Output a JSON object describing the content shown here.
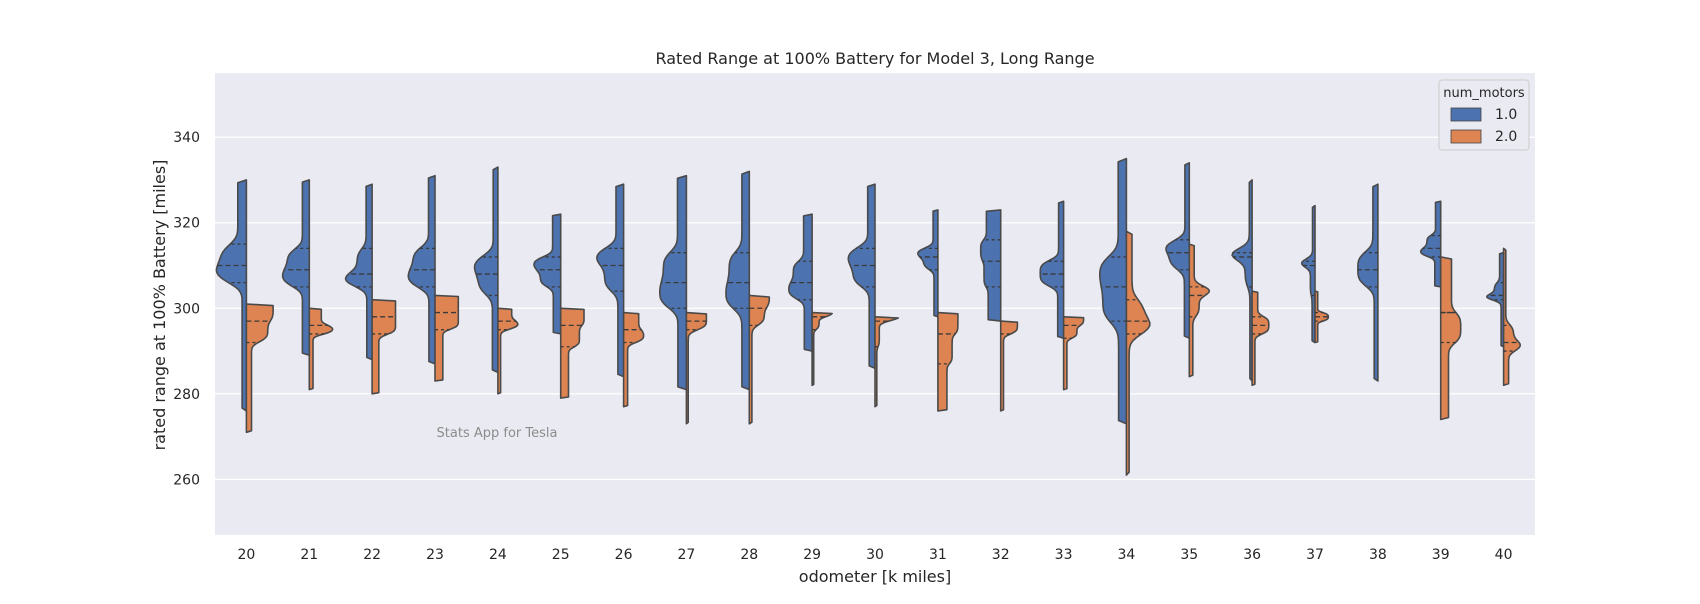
{
  "chart_data": {
    "type": "violin",
    "split": true,
    "inner": "quartile",
    "title": "Rated Range at 100% Battery for Model 3, Long Range",
    "xlabel": "odometer [k miles]",
    "ylabel": "rated range at 100% Battery [miles]",
    "ylim": [
      247,
      355
    ],
    "yticks": [
      260,
      280,
      300,
      320,
      340
    ],
    "grid": true,
    "watermark": "Stats App for Tesla",
    "legend": {
      "title": "num_motors",
      "placement": "top-right"
    },
    "categories": [
      "20",
      "21",
      "22",
      "23",
      "24",
      "25",
      "26",
      "27",
      "28",
      "29",
      "30",
      "31",
      "32",
      "33",
      "34",
      "35",
      "36",
      "37",
      "38",
      "39",
      "40"
    ],
    "series": [
      {
        "name": "1.0",
        "color": "#4c72b0",
        "min": [
          276,
          289,
          288,
          287,
          285,
          294,
          284,
          281,
          281,
          290,
          286,
          298,
          297,
          293,
          273,
          293,
          283,
          292,
          283,
          305,
          291
        ],
        "q1": [
          306,
          305,
          305,
          305,
          303,
          305,
          304,
          300,
          300,
          302,
          305,
          309,
          305,
          305,
          297,
          309,
          305,
          303,
          305,
          312,
          302
        ],
        "median": [
          310,
          309,
          308,
          309,
          308,
          309,
          310,
          306,
          306,
          306,
          310,
          312,
          311,
          308,
          305,
          313,
          312,
          310,
          309,
          314,
          303
        ],
        "q3": [
          315,
          314,
          314,
          314,
          312,
          312,
          314,
          313,
          313,
          311,
          314,
          314,
          316,
          311,
          312,
          316,
          313,
          311,
          313,
          317,
          306
        ],
        "max": [
          330,
          330,
          329,
          331,
          333,
          322,
          329,
          331,
          332,
          322,
          329,
          323,
          323,
          325,
          335,
          334,
          330,
          324,
          329,
          325,
          313
        ],
        "bw": [
          9,
          8,
          8,
          8,
          7,
          8,
          8,
          8,
          7,
          7,
          8,
          6,
          6,
          7,
          8,
          7,
          6,
          4,
          6,
          6,
          5
        ]
      },
      {
        "name": "2.0",
        "color": "#dd8452",
        "min": [
          271,
          281,
          280,
          283,
          280,
          279,
          277,
          273,
          273,
          282,
          277,
          276,
          276,
          281,
          261,
          284,
          282,
          292,
          null,
          274,
          282
        ],
        "q1": [
          292,
          294,
          294,
          295,
          295,
          291,
          292,
          295,
          296,
          295,
          291,
          287,
          294,
          293,
          294,
          298,
          294,
          297,
          null,
          292,
          290
        ],
        "median": [
          297,
          296,
          298,
          299,
          297,
          296,
          295,
          297,
          300,
          298,
          297,
          294,
          297,
          296,
          297,
          303,
          296,
          298,
          null,
          299,
          292
        ],
        "q3": [
          301,
          300,
          302,
          303,
          300,
          300,
          299,
          299,
          303,
          299,
          298,
          299,
          297,
          298,
          302,
          305,
          298,
          299,
          null,
          299,
          296
        ],
        "max": [
          301,
          300,
          302,
          303,
          300,
          300,
          299,
          299,
          303,
          299,
          298,
          299,
          297,
          298,
          318,
          315,
          304,
          304,
          null,
          312,
          314
        ],
        "bw": [
          8,
          7,
          7,
          7,
          6,
          7,
          6,
          6,
          6,
          6,
          7,
          6,
          5,
          6,
          7,
          6,
          5,
          4,
          6,
          6,
          5
        ]
      }
    ]
  }
}
